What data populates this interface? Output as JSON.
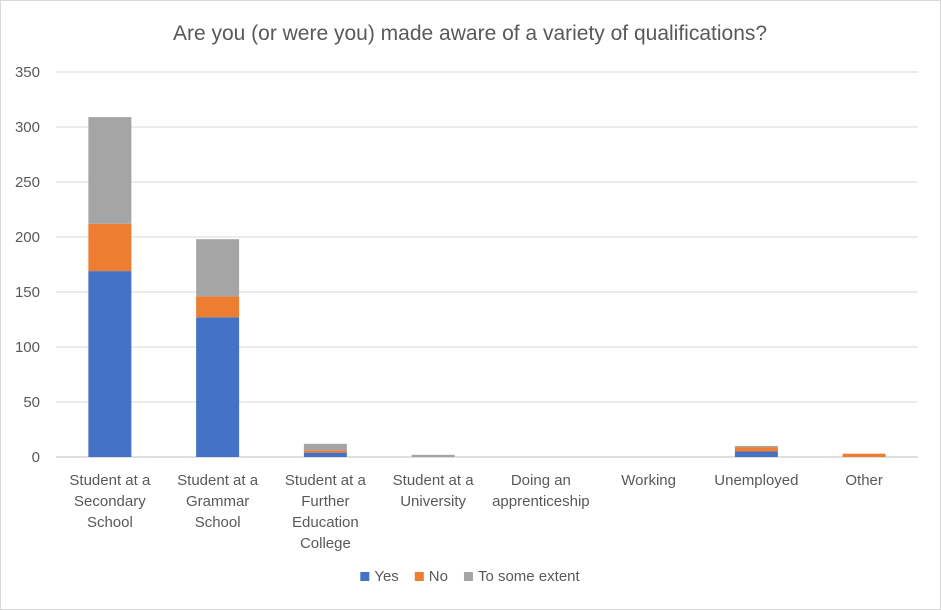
{
  "chart_data": {
    "type": "bar",
    "stacked": true,
    "title": "Are you (or were you) made aware of a variety of qualifications?",
    "categories": [
      [
        "Student at a",
        "Secondary",
        "School"
      ],
      [
        "Student at a",
        "Grammar",
        "School"
      ],
      [
        "Student at a",
        "Further",
        "Education",
        "College"
      ],
      [
        "Student at a",
        "University"
      ],
      [
        "Doing an",
        "apprenticeship"
      ],
      [
        "Working"
      ],
      [
        "Unemployed"
      ],
      [
        "Other"
      ]
    ],
    "series": [
      {
        "name": "Yes",
        "color": "#4472C4",
        "values": [
          169,
          127,
          4,
          0,
          0,
          0,
          5,
          0
        ]
      },
      {
        "name": "No",
        "color": "#ED7D31",
        "values": [
          43,
          19,
          2,
          0,
          0,
          0,
          4,
          3
        ]
      },
      {
        "name": "To some extent",
        "color": "#A5A5A5",
        "values": [
          97,
          52,
          6,
          2,
          0,
          0,
          1,
          0
        ]
      }
    ],
    "ylim": [
      0,
      350
    ],
    "yticks": [
      0,
      50,
      100,
      150,
      200,
      250,
      300,
      350
    ],
    "grid": true,
    "legend": "bottom"
  }
}
